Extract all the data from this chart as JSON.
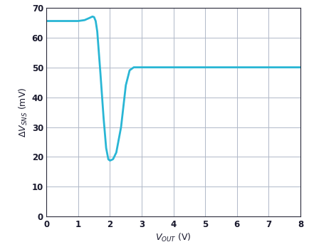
{
  "title": "",
  "xlabel": "V_{OUT} (V)",
  "ylabel": "ΔV_{SNS} (mV)",
  "xlim": [
    0,
    8
  ],
  "ylim": [
    0,
    70
  ],
  "xticks": [
    0,
    1,
    2,
    3,
    4,
    5,
    6,
    7,
    8
  ],
  "yticks": [
    0,
    10,
    20,
    30,
    40,
    50,
    60,
    70
  ],
  "line_color": "#29b6d5",
  "line_width": 2.0,
  "grid_color": "#b0b8c8",
  "background_color": "#ffffff",
  "text_color": "#1a1a2e",
  "spine_color": "#2a2a3a",
  "curve_x": [
    0,
    0.5,
    1.0,
    1.2,
    1.35,
    1.45,
    1.5,
    1.55,
    1.6,
    1.7,
    1.8,
    1.88,
    1.95,
    2.0,
    2.05,
    2.1,
    2.2,
    2.35,
    2.5,
    2.62,
    2.75,
    2.85,
    3.0,
    4.0,
    5.0,
    6.0,
    7.0,
    8.0
  ],
  "curve_y": [
    65.5,
    65.5,
    65.5,
    65.8,
    66.5,
    67.0,
    66.8,
    65.5,
    62.0,
    48.0,
    33.0,
    23.0,
    19.2,
    18.8,
    19.0,
    19.3,
    21.5,
    30.0,
    44.0,
    49.0,
    50.0,
    50.0,
    50.0,
    50.0,
    50.0,
    50.0,
    50.0,
    50.0
  ]
}
